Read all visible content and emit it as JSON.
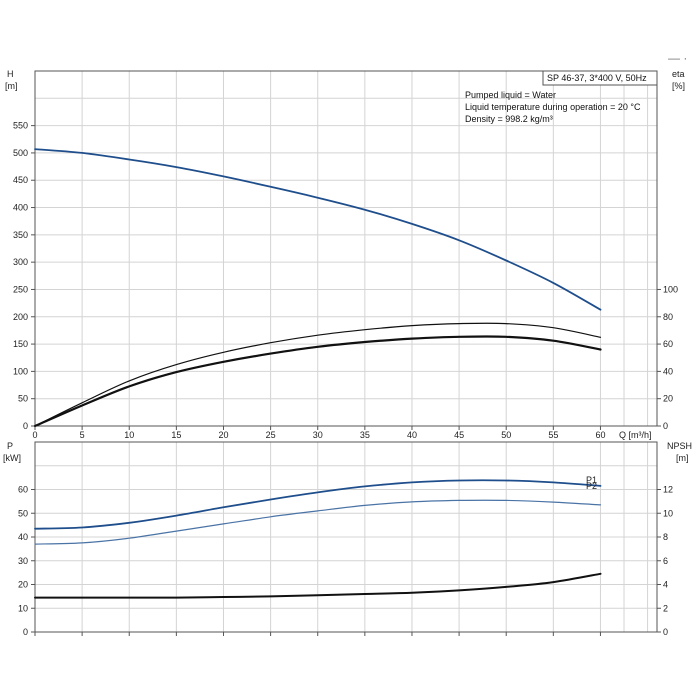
{
  "corner_mark": "— ·",
  "chart_data": [
    {
      "type": "line",
      "title": "SP 46-37, 3*400 V, 50Hz",
      "info_lines": [
        "Pumped liquid = Water",
        "Liquid temperature during operation = 20 °C",
        "Density = 998.2 kg/m³"
      ],
      "xlabel": "Q [m³/h]",
      "xlim": [
        0,
        66
      ],
      "x_ticks": [
        0,
        5,
        10,
        15,
        20,
        25,
        30,
        35,
        40,
        45,
        50,
        55,
        60
      ],
      "ylabel_left": "H",
      "ylabel_left_unit": "[m]",
      "ylim_left": [
        0,
        650
      ],
      "y_ticks_left": [
        0,
        50,
        100,
        150,
        200,
        250,
        300,
        350,
        400,
        450,
        500,
        550
      ],
      "ylabel_right": "eta",
      "ylabel_right_unit": "[%]",
      "ylim_right": [
        0,
        260
      ],
      "y_ticks_right": [
        0,
        20,
        40,
        60,
        80,
        100
      ],
      "grid": true,
      "series": [
        {
          "axis": "left",
          "color": "#1f4e8c",
          "width": 1.8,
          "x": [
            0,
            5,
            10,
            15,
            20,
            25,
            30,
            35,
            40,
            45,
            50,
            55,
            60
          ],
          "values": [
            507,
            500,
            488,
            474,
            457,
            438,
            418,
            396,
            370,
            340,
            303,
            262,
            213
          ]
        },
        {
          "axis": "right",
          "color": "#111111",
          "width": 1.2,
          "x": [
            0,
            5,
            10,
            15,
            20,
            25,
            30,
            35,
            40,
            45,
            50,
            55,
            60
          ],
          "values": [
            0,
            17,
            33,
            45,
            54,
            61,
            66.5,
            70.5,
            73.5,
            75,
            75,
            72,
            65
          ]
        },
        {
          "axis": "right",
          "color": "#111111",
          "width": 2.2,
          "x": [
            0,
            5,
            10,
            15,
            20,
            25,
            30,
            35,
            40,
            45,
            50,
            55,
            60
          ],
          "values": [
            0,
            15,
            29,
            39.5,
            47,
            53,
            58,
            61.5,
            64,
            65.3,
            65.3,
            62.5,
            56
          ]
        }
      ]
    },
    {
      "type": "line",
      "xlim": [
        0,
        66
      ],
      "x_ticks": [
        0,
        5,
        10,
        15,
        20,
        25,
        30,
        35,
        40,
        45,
        50,
        55,
        60
      ],
      "ylabel_left": "P",
      "ylabel_left_unit": "[kW]",
      "ylim_left": [
        0,
        80
      ],
      "y_ticks_left": [
        0,
        10,
        20,
        30,
        40,
        50,
        60
      ],
      "ylabel_right": "NPSH",
      "ylabel_right_unit": "[m]",
      "ylim_right": [
        0,
        16
      ],
      "y_ticks_right": [
        0,
        2,
        4,
        6,
        8,
        10,
        12
      ],
      "grid": true,
      "series": [
        {
          "name": "P1",
          "axis": "left",
          "color": "#1f4e8c",
          "width": 1.8,
          "x": [
            0,
            5,
            10,
            15,
            20,
            25,
            30,
            35,
            40,
            45,
            50,
            55,
            60
          ],
          "values": [
            43.5,
            44,
            46,
            49,
            52.5,
            55.8,
            58.8,
            61.3,
            63,
            63.8,
            63.8,
            63,
            61.5
          ]
        },
        {
          "name": "P2",
          "axis": "left",
          "color": "#4a73a6",
          "width": 1.2,
          "x": [
            0,
            5,
            10,
            15,
            20,
            25,
            30,
            35,
            40,
            45,
            50,
            55,
            60
          ],
          "values": [
            37,
            37.5,
            39.5,
            42.5,
            45.5,
            48.5,
            51,
            53.3,
            54.8,
            55.4,
            55.4,
            54.7,
            53.5
          ]
        },
        {
          "axis": "right",
          "color": "#111111",
          "width": 2.0,
          "x": [
            0,
            5,
            10,
            15,
            20,
            25,
            30,
            35,
            40,
            45,
            50,
            55,
            60
          ],
          "values": [
            2.9,
            2.9,
            2.9,
            2.9,
            2.95,
            3.0,
            3.1,
            3.2,
            3.3,
            3.5,
            3.8,
            4.2,
            4.9
          ]
        }
      ]
    }
  ]
}
